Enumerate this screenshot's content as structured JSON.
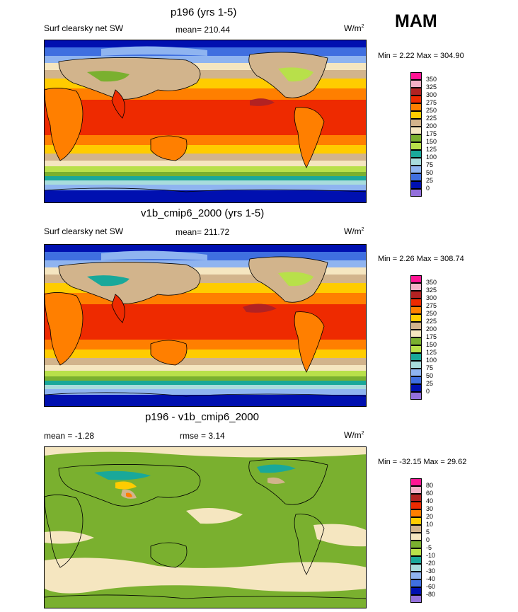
{
  "season": "MAM",
  "panels": [
    {
      "title": "p196 (yrs 1-5)",
      "left_label": "Surf clearsky net SW",
      "mean_label": "mean= 210.44",
      "units": "W/m",
      "units_sup": "2",
      "minmax": "Min =   2.22 Max = 304.90",
      "legend_levels": [
        "350",
        "325",
        "300",
        "275",
        "250",
        "225",
        "200",
        "175",
        "150",
        "125",
        "100",
        "75",
        "50",
        "25",
        "0"
      ],
      "legend_colors": [
        "#ff1493",
        "#f4b0c6",
        "#b22222",
        "#ee2a00",
        "#ff7f00",
        "#ffcc00",
        "#d2b48c",
        "#f5e6c0",
        "#7ab02f",
        "#b8e04a",
        "#19a89a",
        "#a8dcdc",
        "#8fb4f0",
        "#3f6fe0",
        "#0010b0",
        "#9370db"
      ]
    },
    {
      "title": "v1b_cmip6_2000 (yrs 1-5)",
      "left_label": "Surf clearsky net SW",
      "mean_label": "mean= 211.72",
      "units": "W/m",
      "units_sup": "2",
      "minmax": "Min =   2.26 Max = 308.74",
      "legend_levels": [
        "350",
        "325",
        "300",
        "275",
        "250",
        "225",
        "200",
        "175",
        "150",
        "125",
        "100",
        "75",
        "50",
        "25",
        "0"
      ],
      "legend_colors": [
        "#ff1493",
        "#f4b0c6",
        "#b22222",
        "#ee2a00",
        "#ff7f00",
        "#ffcc00",
        "#d2b48c",
        "#f5e6c0",
        "#7ab02f",
        "#b8e04a",
        "#19a89a",
        "#a8dcdc",
        "#8fb4f0",
        "#3f6fe0",
        "#0010b0",
        "#9370db"
      ]
    },
    {
      "title": "p196 - v1b_cmip6_2000",
      "left_label": "mean =  -1.28",
      "mean_label": "rmse =   3.14",
      "units": "W/m",
      "units_sup": "2",
      "minmax": "Min = -32.15 Max =  29.62",
      "legend_levels": [
        "80",
        "60",
        "40",
        "30",
        "20",
        "10",
        "5",
        "0",
        "-5",
        "-10",
        "-20",
        "-30",
        "-40",
        "-60",
        "-80"
      ],
      "legend_colors": [
        "#ff1493",
        "#f4b0c6",
        "#b22222",
        "#ee2a00",
        "#ff7f00",
        "#ffcc00",
        "#d2b48c",
        "#f5e6c0",
        "#7ab02f",
        "#b8e04a",
        "#19a89a",
        "#a8dcdc",
        "#8fb4f0",
        "#3f6fe0",
        "#0010b0",
        "#9370db"
      ]
    }
  ]
}
